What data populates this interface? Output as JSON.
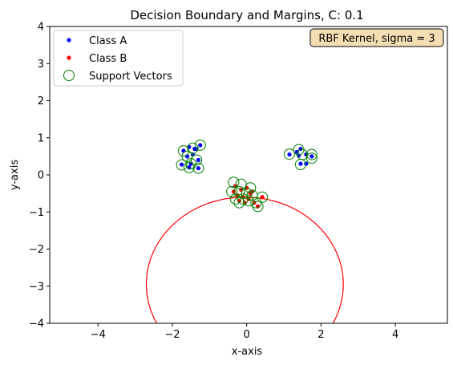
{
  "chart_data": {
    "type": "scatter",
    "title": "Decision Boundary and Margins, C: 0.1",
    "xlabel": "x-axis",
    "ylabel": "y-axis",
    "xlim": [
      -5.3,
      5.4
    ],
    "ylim": [
      -4,
      4
    ],
    "xticks": [
      -4,
      -2,
      0,
      2,
      4
    ],
    "yticks": [
      -4,
      -3,
      -2,
      -1,
      0,
      1,
      2,
      3,
      4
    ],
    "xtick_labels": [
      "−4",
      "−2",
      "0",
      "2",
      "4"
    ],
    "ytick_labels": [
      "−4",
      "−3",
      "−2",
      "−1",
      "0",
      "1",
      "2",
      "3",
      "4"
    ],
    "grid": false,
    "legend_position": "upper-left",
    "annotation": "RBF Kernel, sigma = 3",
    "annotation_position": "upper-right",
    "series": [
      {
        "name": "Class A",
        "color": "#0000ff",
        "marker": "dot",
        "points": [
          [
            -1.7,
            0.65
          ],
          [
            -1.55,
            0.75
          ],
          [
            -1.4,
            0.7
          ],
          [
            -1.25,
            0.8
          ],
          [
            -1.6,
            0.5
          ],
          [
            -1.45,
            0.55
          ],
          [
            -1.3,
            0.4
          ],
          [
            -1.75,
            0.28
          ],
          [
            -1.5,
            0.3
          ],
          [
            -1.3,
            0.18
          ],
          [
            -1.55,
            0.2
          ],
          [
            -1.35,
            0.7
          ],
          [
            1.15,
            0.55
          ],
          [
            1.35,
            0.62
          ],
          [
            1.45,
            0.7
          ],
          [
            1.6,
            0.55
          ],
          [
            1.75,
            0.5
          ],
          [
            1.45,
            0.3
          ],
          [
            1.6,
            0.3
          ],
          [
            1.4,
            0.52
          ]
        ]
      },
      {
        "name": "Class B",
        "color": "#ff0000",
        "marker": "dot",
        "points": [
          [
            -0.3,
            -0.3
          ],
          [
            -0.15,
            -0.4
          ],
          [
            0.0,
            -0.35
          ],
          [
            0.1,
            -0.5
          ],
          [
            -0.25,
            -0.55
          ],
          [
            -0.1,
            -0.6
          ],
          [
            0.05,
            -0.65
          ],
          [
            0.2,
            -0.75
          ],
          [
            0.3,
            -0.85
          ],
          [
            -0.35,
            -0.45
          ],
          [
            0.42,
            -0.6
          ],
          [
            0.15,
            -0.45
          ],
          [
            -0.05,
            -0.75
          ],
          [
            -0.2,
            -0.7
          ]
        ]
      }
    ],
    "support_vectors": {
      "name": "Support Vectors",
      "color": "#008000",
      "marker": "open-circle",
      "points": [
        [
          -1.7,
          0.65
        ],
        [
          -1.45,
          0.72
        ],
        [
          -1.25,
          0.8
        ],
        [
          -1.6,
          0.5
        ],
        [
          -1.35,
          0.4
        ],
        [
          -1.75,
          0.27
        ],
        [
          -1.5,
          0.3
        ],
        [
          -1.3,
          0.18
        ],
        [
          -1.55,
          0.2
        ],
        [
          1.15,
          0.56
        ],
        [
          1.4,
          0.68
        ],
        [
          1.5,
          0.55
        ],
        [
          1.75,
          0.55
        ],
        [
          1.75,
          0.45
        ],
        [
          1.45,
          0.28
        ],
        [
          -0.35,
          -0.2
        ],
        [
          -0.15,
          -0.25
        ],
        [
          0.1,
          -0.35
        ],
        [
          -0.4,
          -0.45
        ],
        [
          -0.2,
          -0.45
        ],
        [
          0.0,
          -0.5
        ],
        [
          0.15,
          -0.55
        ],
        [
          -0.3,
          -0.65
        ],
        [
          -0.1,
          -0.65
        ],
        [
          0.05,
          -0.7
        ],
        [
          0.25,
          -0.75
        ],
        [
          -0.2,
          -0.75
        ],
        [
          0.42,
          -0.6
        ],
        [
          0.3,
          -0.85
        ]
      ]
    },
    "decision_boundary": {
      "color": "#ff0000",
      "shape": "ellipse",
      "center": [
        -0.05,
        -2.95
      ],
      "radius_x": 2.65,
      "radius_y": 2.35
    }
  }
}
